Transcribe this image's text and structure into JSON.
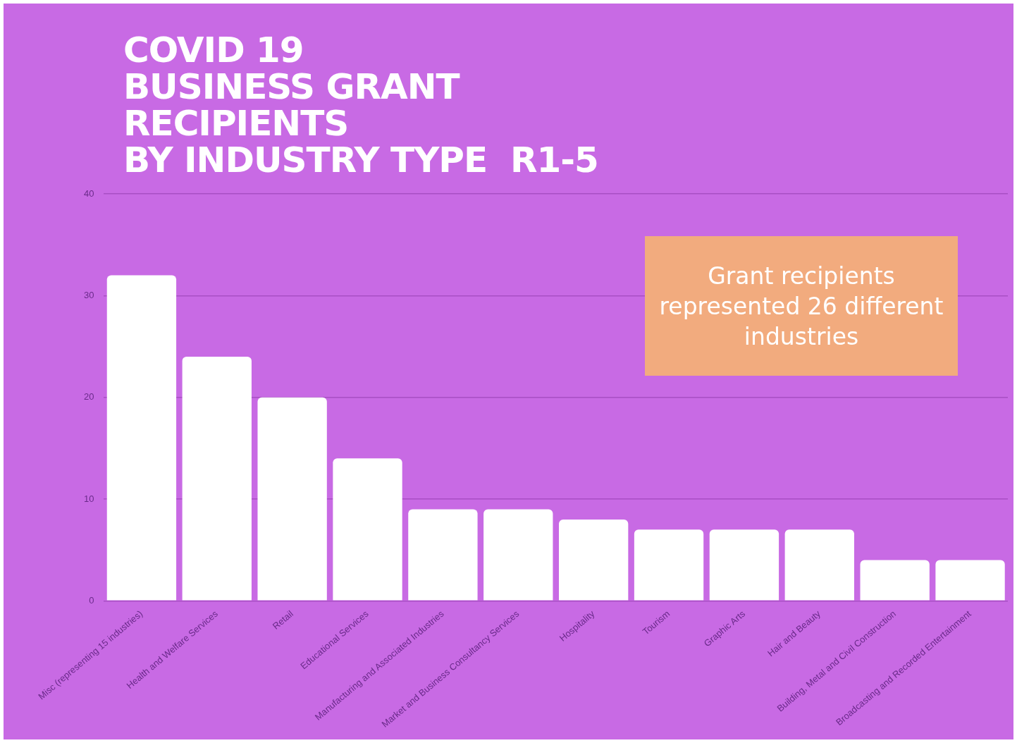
{
  "chart_data": {
    "type": "bar",
    "title": "COVID 19\nBUSINESS GRANT\nRECIPIENTS\nBY INDUSTRY TYPE  R1-5",
    "categories": [
      "Misc (representing 15 industries)",
      "Health and Welfare Services",
      "Retail",
      "Educational Services",
      "Manufacturing and Associated Industries",
      "Market and Business Consultancy Services",
      "Hospitality",
      "Tourism",
      "Graphic Arts",
      "Hair and Beauty",
      "Building, Metal and Civil Construction",
      "Broadcasting and Recorded Entertainment"
    ],
    "values": [
      32,
      24,
      20,
      14,
      9,
      9,
      8,
      7,
      7,
      7,
      4,
      4
    ],
    "color": "#ffffff",
    "ylim": [
      0,
      40
    ],
    "yticks": [
      0,
      10,
      20,
      30,
      40
    ],
    "grid": "y",
    "legend": false,
    "annotations": [
      "Grant recipients represented 26 different industries"
    ]
  }
}
